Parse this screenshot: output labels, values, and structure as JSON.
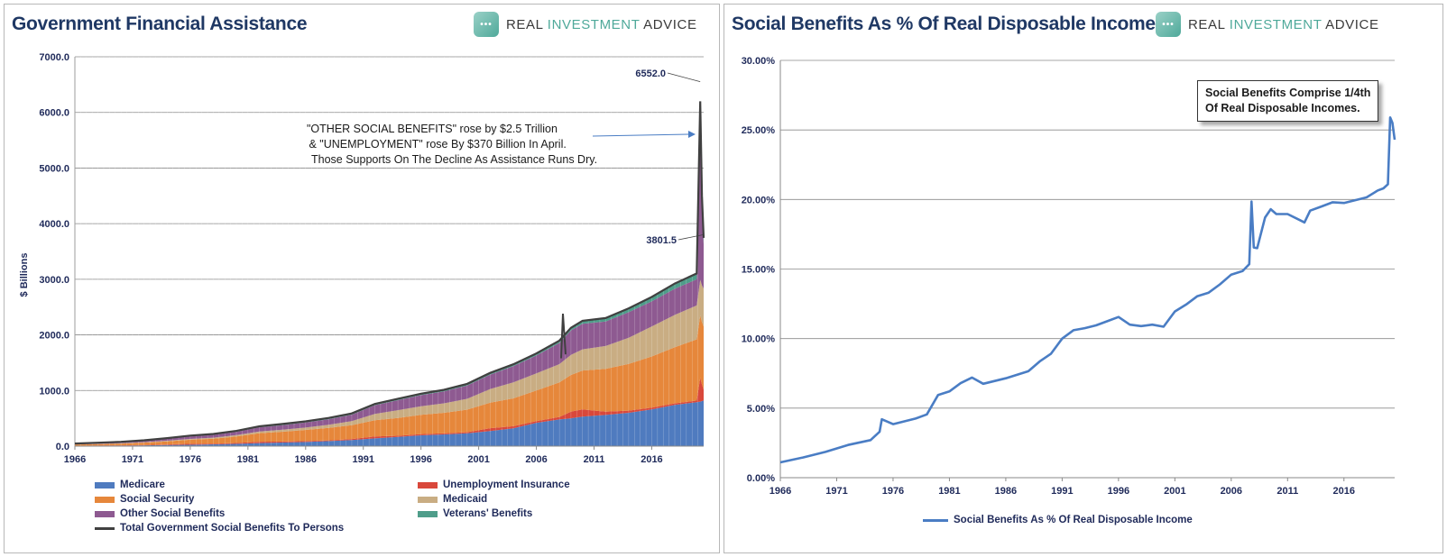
{
  "left": {
    "title": "Government Financial Assistance",
    "logo": {
      "text_main": "REAL ",
      "text_accent": "INVESTMENT",
      "text_end": " ADVICE",
      "icon": "chat-bubble-icon"
    },
    "ylabel": "$ Billions",
    "y_ticks": [
      "0.0",
      "1000.0",
      "2000.0",
      "3000.0",
      "4000.0",
      "5000.0",
      "6000.0",
      "7000.0"
    ],
    "x_ticks": [
      "1966",
      "1971",
      "1976",
      "1981",
      "1986",
      "1991",
      "1996",
      "2001",
      "2006",
      "2011",
      "2016"
    ],
    "annotation": {
      "lines": [
        "\"OTHER SOCIAL BENEFITS\" rose by $2.5 Trillion",
        " & \"UNEMPLOYMENT\" rose By $370 Billion In April.",
        "Those Supports On The Decline As Assistance Runs Dry."
      ]
    },
    "label_peak": "6552.0",
    "label_last": "3801.5",
    "legend": [
      {
        "name": "Medicare",
        "color": "#4f7bbf"
      },
      {
        "name": "Unemployment Insurance",
        "color": "#d9483b"
      },
      {
        "name": "Social Security",
        "color": "#e6873b"
      },
      {
        "name": "Medicaid",
        "color": "#c9ad83"
      },
      {
        "name": "Other Social Benefits",
        "color": "#8e5a91"
      },
      {
        "name": "Veterans' Benefits",
        "color": "#4f9d8a"
      },
      {
        "name": "Total Government Social Benefits To Persons",
        "color": "#404040"
      }
    ]
  },
  "right": {
    "title": "Social Benefits As % Of Real Disposable Income",
    "logo": {
      "text_main": "REAL ",
      "text_accent": "INVESTMENT",
      "text_end": " ADVICE",
      "icon": "chat-bubble-icon"
    },
    "y_ticks": [
      "0.00%",
      "5.00%",
      "10.00%",
      "15.00%",
      "20.00%",
      "25.00%",
      "30.00%"
    ],
    "x_ticks": [
      "1966",
      "1971",
      "1976",
      "1981",
      "1986",
      "1991",
      "1996",
      "2001",
      "2006",
      "2011",
      "2016"
    ],
    "callout": [
      "Social Benefits Comprise 1/4th",
      "Of Real Disposable Incomes."
    ],
    "legend": [
      {
        "name": "Social Benefits As % Of Real Disposable Income",
        "color": "#4a7dc4"
      }
    ]
  },
  "chart_data": [
    {
      "type": "area",
      "title": "Government Financial Assistance",
      "ylabel": "$ Billions",
      "ylim": [
        0,
        7000
      ],
      "xlim": [
        1966,
        2020.5
      ],
      "x": [
        1966,
        1968,
        1970,
        1972,
        1974,
        1976,
        1978,
        1980,
        1982,
        1984,
        1986,
        1988,
        1990,
        1992,
        1994,
        1996,
        1998,
        2000,
        2002,
        2004,
        2006,
        2008,
        2009,
        2010,
        2012,
        2014,
        2016,
        2018,
        2019.9,
        2020.2,
        2020.35,
        2020.5
      ],
      "series": [
        {
          "name": "Medicare",
          "values": [
            5,
            8,
            10,
            15,
            20,
            25,
            32,
            40,
            55,
            65,
            75,
            90,
            110,
            140,
            165,
            195,
            210,
            230,
            270,
            320,
            420,
            480,
            500,
            530,
            560,
            600,
            660,
            740,
            790,
            800,
            810,
            820
          ]
        },
        {
          "name": "Unemployment Insurance",
          "values": [
            3,
            3,
            5,
            6,
            10,
            17,
            12,
            16,
            24,
            17,
            16,
            14,
            18,
            35,
            22,
            22,
            20,
            21,
            52,
            38,
            30,
            45,
            120,
            130,
            60,
            38,
            32,
            29,
            30,
            430,
            300,
            200
          ]
        },
        {
          "name": "Social Security",
          "values": [
            20,
            26,
            31,
            42,
            56,
            73,
            91,
            117,
            154,
            178,
            200,
            225,
            250,
            290,
            320,
            345,
            370,
            405,
            460,
            500,
            550,
            620,
            660,
            700,
            770,
            840,
            920,
            1010,
            1100,
            1120,
            1120,
            1130
          ]
        },
        {
          "name": "Medicaid",
          "values": [
            2,
            4,
            6,
            9,
            11,
            14,
            18,
            24,
            30,
            36,
            43,
            56,
            73,
            115,
            140,
            155,
            170,
            195,
            245,
            290,
            310,
            330,
            360,
            380,
            410,
            470,
            540,
            580,
            610,
            640,
            660,
            680
          ]
        },
        {
          "name": "Other Social Benefits",
          "values": [
            12,
            15,
            18,
            25,
            35,
            45,
            50,
            60,
            75,
            82,
            90,
            100,
            115,
            155,
            180,
            200,
            215,
            240,
            260,
            290,
            320,
            380,
            440,
            460,
            440,
            460,
            450,
            470,
            470,
            3100,
            1500,
            800
          ]
        },
        {
          "name": "Veterans' Benefits",
          "values": [
            5,
            6,
            7,
            9,
            12,
            15,
            16,
            17,
            19,
            20,
            21,
            22,
            23,
            24,
            25,
            26,
            27,
            28,
            30,
            34,
            38,
            42,
            48,
            54,
            62,
            70,
            80,
            94,
            105,
            110,
            112,
            114
          ]
        }
      ],
      "total_line": {
        "name": "Total Government Social Benefits To Persons",
        "note": "peak 6552.0 (Apr 2020), last 3801.5"
      },
      "annotations": [
        "6552.0",
        "3801.5"
      ]
    },
    {
      "type": "line",
      "title": "Social Benefits As % Of Real Disposable Income",
      "ylim": [
        0,
        30
      ],
      "xlim": [
        1966,
        2020.5
      ],
      "series": [
        {
          "name": "Social Benefits As % Of Real Disposable Income",
          "x": [
            1966,
            1968,
            1970,
            1972,
            1974,
            1974.8,
            1975,
            1976,
            1978,
            1979,
            1980,
            1981,
            1982,
            1983,
            1984,
            1986,
            1988,
            1989,
            1990,
            1991,
            1992,
            1993,
            1994,
            1995,
            1996,
            1997,
            1998,
            1999,
            2000,
            2001,
            2002,
            2003,
            2004,
            2005,
            2006,
            2007,
            2007.6,
            2007.8,
            2008,
            2008.3,
            2009,
            2009.5,
            2010,
            2011,
            2012,
            2012.5,
            2013,
            2014,
            2015,
            2016,
            2017,
            2018,
            2019,
            2019.5,
            2019.9,
            2020.1,
            2020.3,
            2020.5
          ],
          "values": [
            1.1,
            1.5,
            1.8,
            2.2,
            2.8,
            3.3,
            4.1,
            4.0,
            4.3,
            4.5,
            5.8,
            6.3,
            6.8,
            7.1,
            6.9,
            7.2,
            7.6,
            8.2,
            9.0,
            10.0,
            10.5,
            10.9,
            11.0,
            11.2,
            11.4,
            11.1,
            10.9,
            10.9,
            11.0,
            12.0,
            12.4,
            12.9,
            13.4,
            13.9,
            14.5,
            15.0,
            15.4,
            19.8,
            16.4,
            16.6,
            18.7,
            19.2,
            19.1,
            19.0,
            18.5,
            18.2,
            19.3,
            19.5,
            19.7,
            19.9,
            20.0,
            20.1,
            20.5,
            20.9,
            21.1,
            25.9,
            25.5,
            24.3
          ]
        }
      ],
      "annotations": [
        "Social Benefits Comprise 1/4th Of Real Disposable Incomes."
      ]
    }
  ]
}
